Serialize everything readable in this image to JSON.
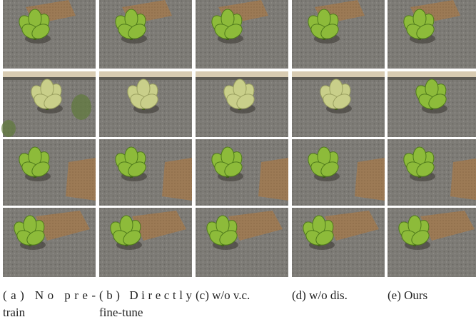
{
  "captions": [
    {
      "lines": [
        "(a) No pre-",
        "train"
      ]
    },
    {
      "lines": [
        "(b) Directly",
        "fine-tune"
      ]
    },
    {
      "lines": [
        "(c) w/o v.c."
      ]
    },
    {
      "lines": [
        "(d) w/o dis."
      ]
    },
    {
      "lines": [
        "(e) Ours"
      ]
    }
  ]
}
